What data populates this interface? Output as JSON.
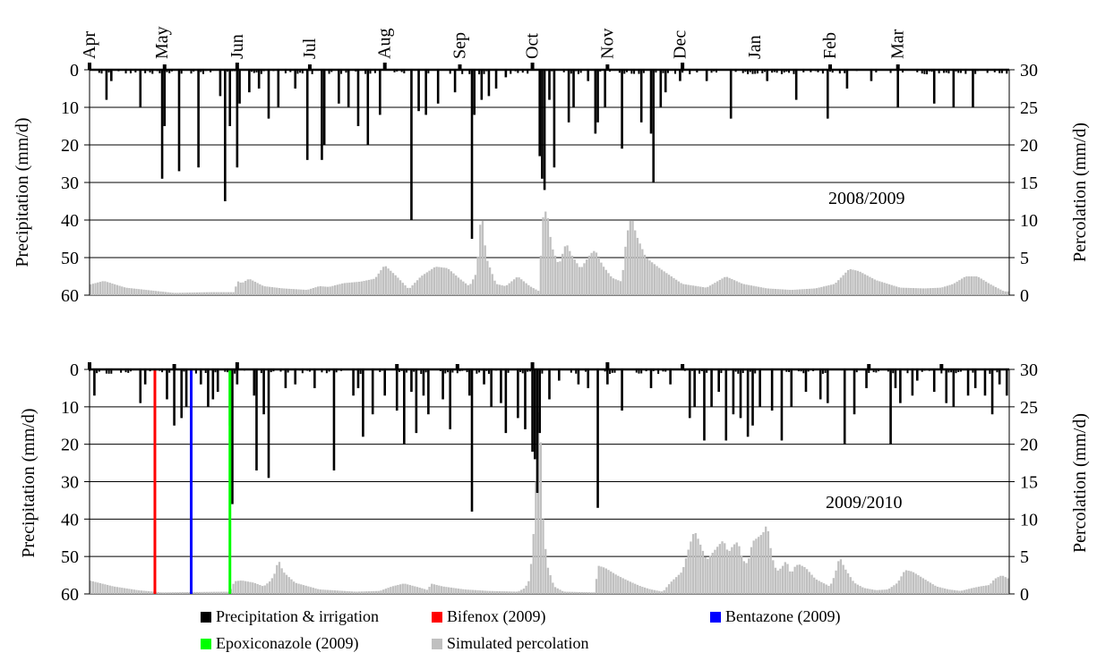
{
  "months": [
    "Apr",
    "May",
    "Jun",
    "Jul",
    "Aug",
    "Sep",
    "Oct",
    "Nov",
    "Dec",
    "Jan",
    "Feb",
    "Mar"
  ],
  "legend": [
    {
      "label": "Precipitation & irrigation",
      "color": "#000000"
    },
    {
      "label": "Bifenox (2009)",
      "color": "#ff0000"
    },
    {
      "label": "Bentazone (2009)",
      "color": "#0000ff"
    },
    {
      "label": "Epoxiconazole (2009)",
      "color": "#00ff00"
    },
    {
      "label": "Simulated percolation",
      "color": "#c0c0c0"
    }
  ],
  "chart_data": [
    {
      "type": "bar",
      "title": "2008/2009",
      "ylabel_left": "Precipitation (mm/d)",
      "ylabel_right": "Percolation (mm/d)",
      "ylim_left": [
        60,
        0
      ],
      "ylim_right": [
        0,
        30
      ],
      "yticks_left": [
        0,
        10,
        20,
        30,
        40,
        50,
        60
      ],
      "yticks_right": [
        30,
        25,
        20,
        15,
        10,
        5,
        0
      ],
      "grid": true,
      "x_unit": "day of hydrological year (1 Apr = 0)",
      "precipitation": [
        [
          7,
          8
        ],
        [
          9,
          3
        ],
        [
          21,
          10
        ],
        [
          30,
          29
        ],
        [
          31,
          15
        ],
        [
          37,
          27
        ],
        [
          45,
          26
        ],
        [
          54,
          7
        ],
        [
          56,
          35
        ],
        [
          58,
          15
        ],
        [
          61,
          26
        ],
        [
          62,
          9
        ],
        [
          66,
          6
        ],
        [
          70,
          5
        ],
        [
          74,
          13
        ],
        [
          78,
          10
        ],
        [
          85,
          5
        ],
        [
          90,
          24
        ],
        [
          96,
          24
        ],
        [
          97,
          20
        ],
        [
          103,
          9
        ],
        [
          107,
          10
        ],
        [
          111,
          15
        ],
        [
          115,
          20
        ],
        [
          120,
          12
        ],
        [
          133,
          40
        ],
        [
          136,
          11
        ],
        [
          139,
          12
        ],
        [
          144,
          9
        ],
        [
          151,
          6
        ],
        [
          158,
          45
        ],
        [
          159,
          12
        ],
        [
          162,
          8
        ],
        [
          165,
          7
        ],
        [
          168,
          5
        ],
        [
          172,
          2
        ],
        [
          186,
          23
        ],
        [
          187,
          29
        ],
        [
          188,
          32
        ],
        [
          190,
          8
        ],
        [
          192,
          26
        ],
        [
          198,
          14
        ],
        [
          200,
          10
        ],
        [
          206,
          3
        ],
        [
          209,
          17
        ],
        [
          210,
          14
        ],
        [
          213,
          10
        ],
        [
          220,
          21
        ],
        [
          228,
          14
        ],
        [
          232,
          17
        ],
        [
          233,
          30
        ],
        [
          236,
          10
        ],
        [
          238,
          6
        ],
        [
          244,
          3
        ],
        [
          255,
          3
        ],
        [
          265,
          13
        ],
        [
          280,
          3
        ],
        [
          292,
          8
        ],
        [
          305,
          13
        ],
        [
          313,
          5
        ],
        [
          323,
          3
        ],
        [
          334,
          10
        ],
        [
          349,
          9
        ],
        [
          357,
          10
        ],
        [
          365,
          10
        ]
      ],
      "irrigation_up": [
        [
          0,
          2
        ],
        [
          31,
          1.5
        ],
        [
          61,
          2
        ],
        [
          91,
          1.5
        ],
        [
          122,
          2
        ],
        [
          153,
          1.5
        ],
        [
          183,
          2
        ],
        [
          214,
          1.5
        ],
        [
          245,
          2
        ],
        [
          306,
          1.5
        ],
        [
          334,
          1.5
        ]
      ],
      "percolation": [
        [
          0,
          1.4
        ],
        [
          6,
          1.9
        ],
        [
          15,
          1.0
        ],
        [
          35,
          0.3
        ],
        [
          50,
          0.4
        ],
        [
          60,
          0.4
        ],
        [
          61,
          1.9
        ],
        [
          63,
          1.6
        ],
        [
          66,
          2.2
        ],
        [
          72,
          1.2
        ],
        [
          80,
          0.9
        ],
        [
          90,
          0.7
        ],
        [
          95,
          1.2
        ],
        [
          99,
          1.1
        ],
        [
          105,
          1.6
        ],
        [
          112,
          1.8
        ],
        [
          118,
          2.2
        ],
        [
          122,
          4.0
        ],
        [
          127,
          2.5
        ],
        [
          132,
          0.8
        ],
        [
          137,
          2.5
        ],
        [
          143,
          3.8
        ],
        [
          148,
          3.6
        ],
        [
          153,
          2.2
        ],
        [
          157,
          1.2
        ],
        [
          160,
          3.0
        ],
        [
          162,
          11.5
        ],
        [
          164,
          5.0
        ],
        [
          168,
          1.5
        ],
        [
          172,
          1.2
        ],
        [
          177,
          2.5
        ],
        [
          182,
          1.2
        ],
        [
          186,
          0.5
        ],
        [
          187,
          10.0
        ],
        [
          189,
          11.5
        ],
        [
          191,
          6.5
        ],
        [
          194,
          4.0
        ],
        [
          197,
          7.0
        ],
        [
          199,
          5.5
        ],
        [
          203,
          3.5
        ],
        [
          207,
          5.5
        ],
        [
          209,
          6.0
        ],
        [
          212,
          4.0
        ],
        [
          216,
          2.3
        ],
        [
          220,
          1.8
        ],
        [
          222,
          8.0
        ],
        [
          224,
          10.5
        ],
        [
          226,
          8.0
        ],
        [
          230,
          5.0
        ],
        [
          236,
          3.5
        ],
        [
          245,
          1.5
        ],
        [
          255,
          1.0
        ],
        [
          263,
          2.5
        ],
        [
          270,
          1.5
        ],
        [
          280,
          0.9
        ],
        [
          290,
          0.7
        ],
        [
          300,
          0.9
        ],
        [
          308,
          1.5
        ],
        [
          314,
          3.5
        ],
        [
          318,
          3.2
        ],
        [
          325,
          2.0
        ],
        [
          335,
          1.0
        ],
        [
          345,
          0.9
        ],
        [
          352,
          1.0
        ],
        [
          357,
          1.5
        ],
        [
          362,
          2.5
        ],
        [
          367,
          2.5
        ],
        [
          372,
          1.5
        ],
        [
          378,
          0.5
        ]
      ]
    },
    {
      "type": "bar",
      "title": "2009/2010",
      "ylabel_left": "Precipitation (mm/d)",
      "ylabel_right": "Percolation (mm/d)",
      "ylim_left": [
        60,
        0
      ],
      "ylim_right": [
        0,
        30
      ],
      "yticks_left": [
        0,
        10,
        20,
        30,
        40,
        50,
        60
      ],
      "yticks_right": [
        30,
        25,
        20,
        15,
        10,
        5,
        0
      ],
      "grid": true,
      "x_unit": "day of hydrological year (1 Apr = 0)",
      "application_lines": [
        {
          "name": "Bifenox (2009)",
          "x": 27,
          "color": "#ff0000"
        },
        {
          "name": "Bentazone (2009)",
          "x": 42,
          "color": "#0000ff"
        },
        {
          "name": "Epoxiconazole (2009)",
          "x": 58,
          "color": "#00ff00"
        }
      ],
      "precipitation": [
        [
          2,
          7
        ],
        [
          21,
          9
        ],
        [
          23,
          4
        ],
        [
          32,
          8
        ],
        [
          35,
          15
        ],
        [
          38,
          13
        ],
        [
          40,
          10
        ],
        [
          46,
          4
        ],
        [
          49,
          10
        ],
        [
          51,
          8
        ],
        [
          53,
          6
        ],
        [
          58,
          15
        ],
        [
          59,
          36
        ],
        [
          61,
          4
        ],
        [
          68,
          7
        ],
        [
          69,
          27
        ],
        [
          72,
          12
        ],
        [
          74,
          29
        ],
        [
          81,
          5
        ],
        [
          85,
          4
        ],
        [
          93,
          5
        ],
        [
          101,
          27
        ],
        [
          109,
          7
        ],
        [
          111,
          5
        ],
        [
          113,
          18
        ],
        [
          117,
          12
        ],
        [
          122,
          7
        ],
        [
          127,
          11
        ],
        [
          130,
          20
        ],
        [
          133,
          6
        ],
        [
          135,
          17
        ],
        [
          138,
          7
        ],
        [
          140,
          12
        ],
        [
          146,
          8
        ],
        [
          149,
          16
        ],
        [
          157,
          7
        ],
        [
          158,
          38
        ],
        [
          163,
          4
        ],
        [
          166,
          10
        ],
        [
          170,
          9
        ],
        [
          172,
          17
        ],
        [
          177,
          13
        ],
        [
          180,
          16
        ],
        [
          183,
          22
        ],
        [
          184,
          24
        ],
        [
          185,
          33
        ],
        [
          186,
          17
        ],
        [
          190,
          8
        ],
        [
          194,
          3
        ],
        [
          202,
          4
        ],
        [
          206,
          5
        ],
        [
          210,
          37
        ],
        [
          214,
          4
        ],
        [
          220,
          11
        ],
        [
          232,
          5
        ],
        [
          240,
          4
        ],
        [
          248,
          13
        ],
        [
          250,
          10
        ],
        [
          254,
          19
        ],
        [
          257,
          10
        ],
        [
          260,
          6
        ],
        [
          263,
          19
        ],
        [
          266,
          12
        ],
        [
          269,
          13
        ],
        [
          272,
          18
        ],
        [
          274,
          15
        ],
        [
          277,
          10
        ],
        [
          282,
          11
        ],
        [
          286,
          19
        ],
        [
          290,
          10
        ],
        [
          296,
          6
        ],
        [
          302,
          8
        ],
        [
          305,
          9
        ],
        [
          312,
          20
        ],
        [
          316,
          12
        ],
        [
          321,
          5
        ],
        [
          331,
          20
        ],
        [
          333,
          5
        ],
        [
          335,
          9
        ],
        [
          340,
          7
        ],
        [
          342,
          3
        ],
        [
          349,
          6
        ],
        [
          354,
          9
        ],
        [
          357,
          10
        ],
        [
          363,
          7
        ],
        [
          366,
          5
        ],
        [
          370,
          7
        ],
        [
          373,
          12
        ],
        [
          376,
          4
        ],
        [
          379,
          7
        ]
      ],
      "irrigation_up": [
        [
          0,
          2
        ],
        [
          35,
          1.5
        ],
        [
          61,
          2
        ],
        [
          127,
          1.5
        ],
        [
          152,
          1.5
        ],
        [
          183,
          2
        ],
        [
          214,
          2
        ],
        [
          245,
          1.5
        ],
        [
          322,
          1.5
        ],
        [
          352,
          1.5
        ]
      ],
      "percolation": [
        [
          0,
          1.8
        ],
        [
          10,
          1.0
        ],
        [
          20,
          0.5
        ],
        [
          30,
          0.2
        ],
        [
          58,
          0.3
        ],
        [
          60,
          1.7
        ],
        [
          63,
          1.8
        ],
        [
          68,
          1.5
        ],
        [
          72,
          1.0
        ],
        [
          75,
          1.8
        ],
        [
          77,
          3.0
        ],
        [
          78,
          4.7
        ],
        [
          80,
          3.0
        ],
        [
          85,
          1.5
        ],
        [
          95,
          0.6
        ],
        [
          110,
          0.3
        ],
        [
          120,
          0.4
        ],
        [
          125,
          1.0
        ],
        [
          130,
          1.4
        ],
        [
          137,
          0.8
        ],
        [
          140,
          0.5
        ],
        [
          141,
          1.4
        ],
        [
          146,
          1.0
        ],
        [
          155,
          0.6
        ],
        [
          165,
          0.4
        ],
        [
          177,
          0.3
        ],
        [
          180,
          0.8
        ],
        [
          182,
          2.0
        ],
        [
          183,
          6.0
        ],
        [
          184,
          10.0
        ],
        [
          185,
          20.0
        ],
        [
          186,
          28.5
        ],
        [
          187,
          12.0
        ],
        [
          189,
          4.0
        ],
        [
          192,
          1.0
        ],
        [
          196,
          0.3
        ],
        [
          209,
          0.2
        ],
        [
          210,
          3.8
        ],
        [
          213,
          3.5
        ],
        [
          218,
          2.5
        ],
        [
          223,
          1.7
        ],
        [
          228,
          1.0
        ],
        [
          232,
          0.6
        ],
        [
          237,
          0.3
        ],
        [
          240,
          1.5
        ],
        [
          245,
          3.0
        ],
        [
          248,
          6.5
        ],
        [
          250,
          8.5
        ],
        [
          252,
          7.0
        ],
        [
          255,
          4.5
        ],
        [
          260,
          6.5
        ],
        [
          262,
          7.2
        ],
        [
          264,
          5.5
        ],
        [
          266,
          6.5
        ],
        [
          268,
          7.0
        ],
        [
          270,
          4.5
        ],
        [
          272,
          4.0
        ],
        [
          274,
          7.0
        ],
        [
          276,
          7.5
        ],
        [
          278,
          8.0
        ],
        [
          279,
          8.5
        ],
        [
          280,
          9.5
        ],
        [
          282,
          5.0
        ],
        [
          284,
          3.0
        ],
        [
          286,
          3.5
        ],
        [
          288,
          4.5
        ],
        [
          290,
          2.5
        ],
        [
          291,
          3.5
        ],
        [
          293,
          4.0
        ],
        [
          296,
          3.5
        ],
        [
          300,
          2.0
        ],
        [
          303,
          1.5
        ],
        [
          306,
          1.0
        ],
        [
          308,
          2.5
        ],
        [
          310,
          5.0
        ],
        [
          312,
          3.5
        ],
        [
          314,
          2.5
        ],
        [
          316,
          1.5
        ],
        [
          320,
          0.8
        ],
        [
          325,
          0.5
        ],
        [
          330,
          0.6
        ],
        [
          334,
          1.5
        ],
        [
          337,
          3.2
        ],
        [
          340,
          3.0
        ],
        [
          345,
          2.0
        ],
        [
          350,
          1.0
        ],
        [
          355,
          0.6
        ],
        [
          360,
          0.4
        ],
        [
          365,
          0.8
        ],
        [
          368,
          1.0
        ],
        [
          372,
          1.2
        ],
        [
          374,
          2.0
        ],
        [
          377,
          2.5
        ],
        [
          380,
          2.0
        ]
      ]
    }
  ]
}
